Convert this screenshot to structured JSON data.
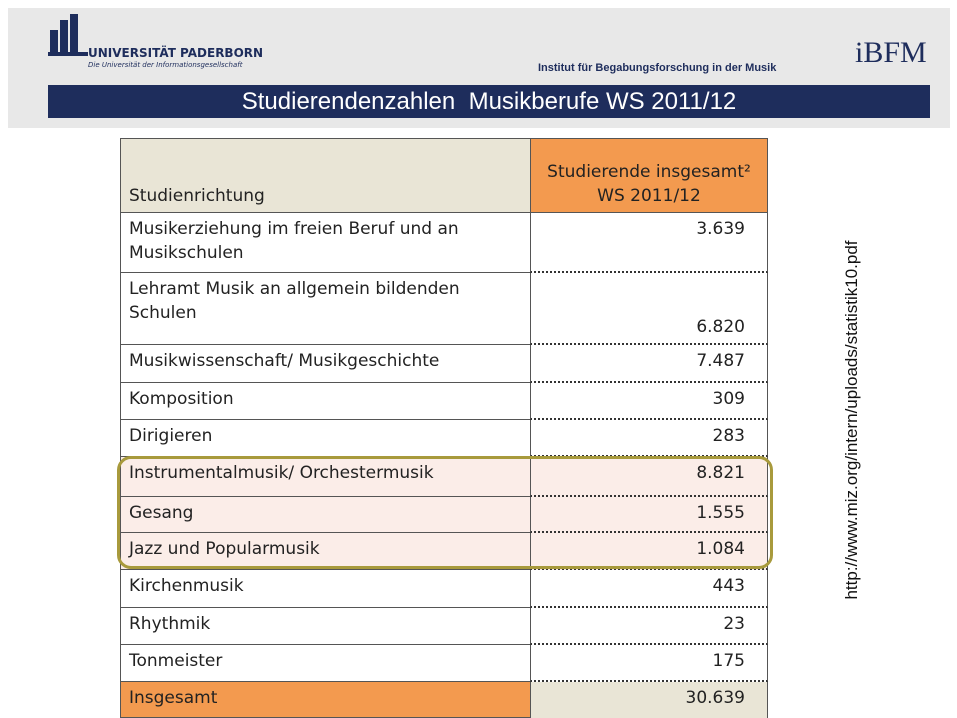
{
  "header": {
    "university": "UNIVERSITÄT PADERBORN",
    "university_subtitle": "Die Universität der Informationsgesellschaft",
    "institute": "Institut für Begabungsforschung in der Musik",
    "institute_logo": "iBFM",
    "title": "Studierendenzahlen  Musikberufe WS 2011/12"
  },
  "table": {
    "columns": [
      "Studienrichtung",
      [
        "Studierende insgesamt²",
        "WS 2011/12"
      ]
    ],
    "rows": [
      [
        "Musikerziehung im freien Beruf und an Musikschulen",
        "3.639"
      ],
      [
        "Lehramt Musik an allgemein bildenden Schulen",
        "6.820"
      ],
      [
        "Musikwissenschaft/ Musikgeschichte",
        "7.487"
      ],
      [
        "Komposition",
        "309"
      ],
      [
        "Dirigieren",
        "283"
      ],
      [
        "Instrumentalmusik/ Orchestermusik",
        "8.821"
      ],
      [
        "Gesang",
        "1.555"
      ],
      [
        "Jazz und Popularmusik",
        "1.084"
      ],
      [
        "Kirchenmusik",
        "443"
      ],
      [
        "Rhythmik",
        "23"
      ],
      [
        "Tonmeister",
        "175"
      ]
    ],
    "total": [
      "Insgesamt",
      "30.639"
    ]
  },
  "source": "http://www.miz.org/intern/uploads/statistik10.pdf"
}
